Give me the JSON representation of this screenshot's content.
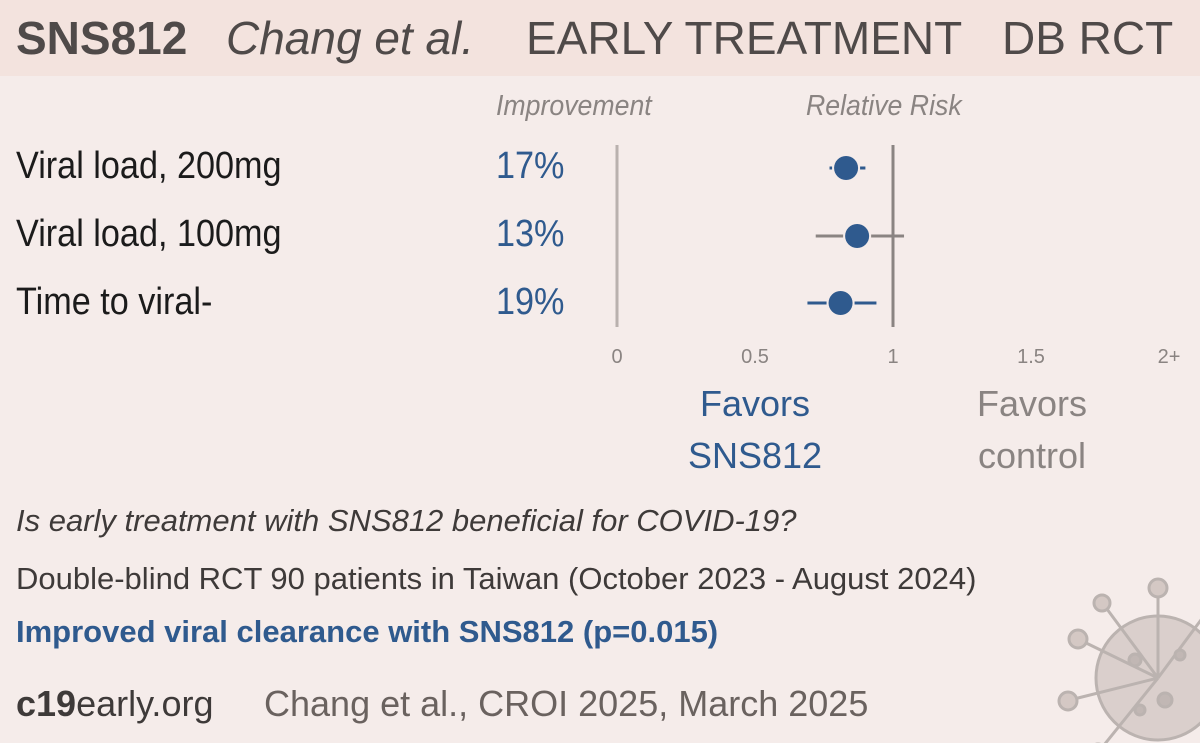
{
  "header": {
    "drug": "SNS812",
    "author": "Chang et al.",
    "treatment": "EARLY TREATMENT",
    "design": "DB RCT"
  },
  "columns": {
    "improvement": "Improvement",
    "relative_risk": "Relative Risk"
  },
  "favors": {
    "drug": "Favors\nSNS812",
    "control": "Favors\ncontrol"
  },
  "summary": {
    "question": "Is early treatment with SNS812 beneficial for COVID-19?",
    "design": "Double-blind RCT 90 patients in Taiwan (October 2023 - August 2024)",
    "result": "Improved viral clearance with SNS812 (p=0.015)"
  },
  "footer": {
    "site_bold": "c19",
    "site_rest": "early.org",
    "citation": "Chang et al., CROI 2025, March 2025"
  },
  "colors": {
    "accent": "#2f5a8e",
    "gray": "#8a8482",
    "background": "#f5ecea",
    "header_bg": "#f3e3de"
  },
  "icons": [
    "virus-icon"
  ],
  "chart_data": {
    "type": "forest",
    "x_axis": {
      "ticks": [
        "0",
        "0.5",
        "1",
        "1.5",
        "2+"
      ],
      "range": [
        0,
        2
      ]
    },
    "reference_line": 1,
    "rows": [
      {
        "label": "Viral load, 200mg",
        "improvement": "17%",
        "rr": 0.83,
        "ci": [
          0.77,
          0.9
        ],
        "ci_color": "#2f5a8e"
      },
      {
        "label": "Viral load, 100mg",
        "improvement": "13%",
        "rr": 0.87,
        "ci": [
          0.72,
          1.04
        ],
        "ci_color": "#8a8482"
      },
      {
        "label": "Time to viral-",
        "improvement": "19%",
        "rr": 0.81,
        "ci": [
          0.69,
          0.94
        ],
        "ci_color": "#2f5a8e"
      }
    ]
  }
}
